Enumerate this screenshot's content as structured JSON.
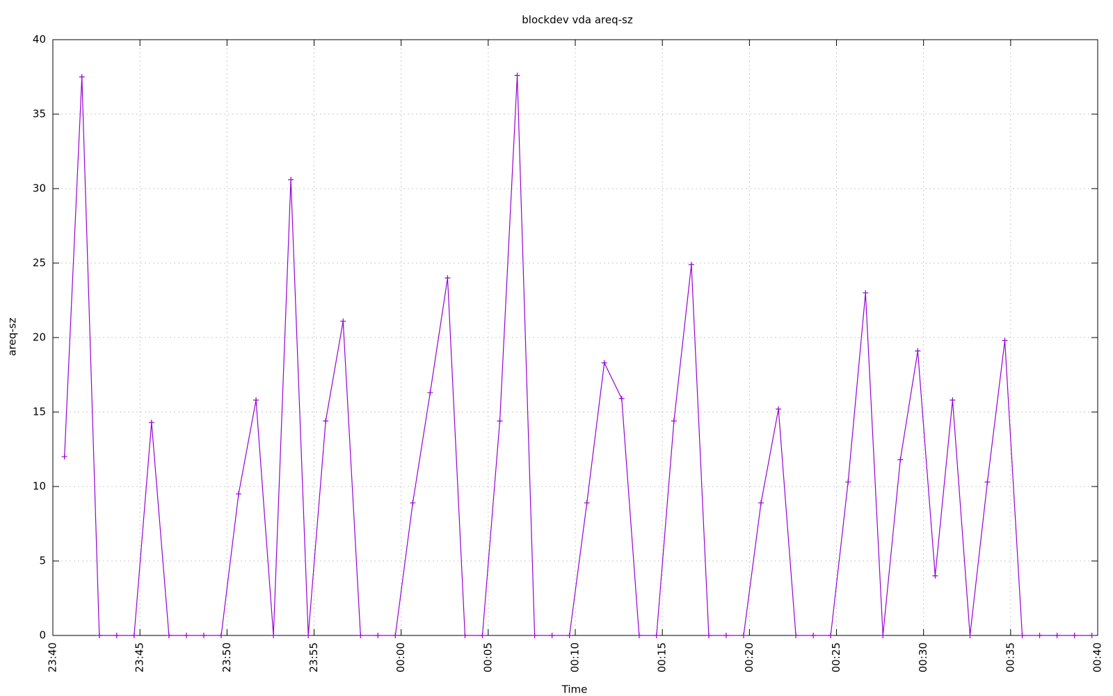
{
  "chart_data": {
    "type": "line",
    "title": "blockdev vda areq-sz",
    "x_label": "Time",
    "y_label": "areq-sz",
    "x": [
      "23:40:40",
      "23:41:40",
      "23:42:40",
      "23:43:40",
      "23:44:40",
      "23:45:40",
      "23:46:40",
      "23:47:40",
      "23:48:40",
      "23:49:40",
      "23:50:40",
      "23:51:40",
      "23:52:40",
      "23:53:40",
      "23:54:40",
      "23:55:40",
      "23:56:40",
      "23:57:40",
      "23:58:40",
      "23:59:40",
      "00:00:40",
      "00:01:40",
      "00:02:40",
      "00:03:40",
      "00:04:40",
      "00:05:40",
      "00:06:40",
      "00:07:40",
      "00:08:40",
      "00:09:40",
      "00:10:40",
      "00:11:40",
      "00:12:40",
      "00:13:40",
      "00:14:40",
      "00:15:40",
      "00:16:40",
      "00:17:40",
      "00:18:40",
      "00:19:40",
      "00:20:40",
      "00:21:40",
      "00:22:40",
      "00:23:40",
      "00:24:40",
      "00:25:40",
      "00:26:40",
      "00:27:40",
      "00:28:40",
      "00:29:40",
      "00:30:40",
      "00:31:40",
      "00:32:40",
      "00:33:40",
      "00:34:40",
      "00:35:40",
      "00:36:40",
      "00:37:40",
      "00:38:40",
      "00:39:40"
    ],
    "values": [
      12,
      37.5,
      0,
      0,
      0,
      14.3,
      0,
      0,
      0,
      0,
      9.5,
      15.8,
      0,
      30.6,
      0,
      14.4,
      21.1,
      0,
      0,
      0,
      8.9,
      16.3,
      24,
      0,
      0,
      14.4,
      37.6,
      0,
      0,
      0,
      8.9,
      18.3,
      15.9,
      0,
      0,
      14.4,
      24.9,
      0,
      0,
      0,
      8.9,
      15.2,
      0,
      0,
      0,
      10.3,
      23,
      0,
      11.8,
      19.1,
      4,
      15.8,
      0,
      10.3,
      19.8,
      0,
      0,
      0,
      0,
      0
    ],
    "color": "#9400d3",
    "xlim": [
      "23:40",
      "00:40"
    ],
    "xticks": [
      "23:40",
      "23:45",
      "23:50",
      "23:55",
      "00:00",
      "00:05",
      "00:10",
      "00:15",
      "00:20",
      "00:25",
      "00:30",
      "00:35",
      "00:40"
    ],
    "ylim": [
      0,
      40
    ],
    "yticks": [
      0,
      5,
      10,
      15,
      20,
      25,
      30,
      35,
      40
    ],
    "grid": true
  }
}
